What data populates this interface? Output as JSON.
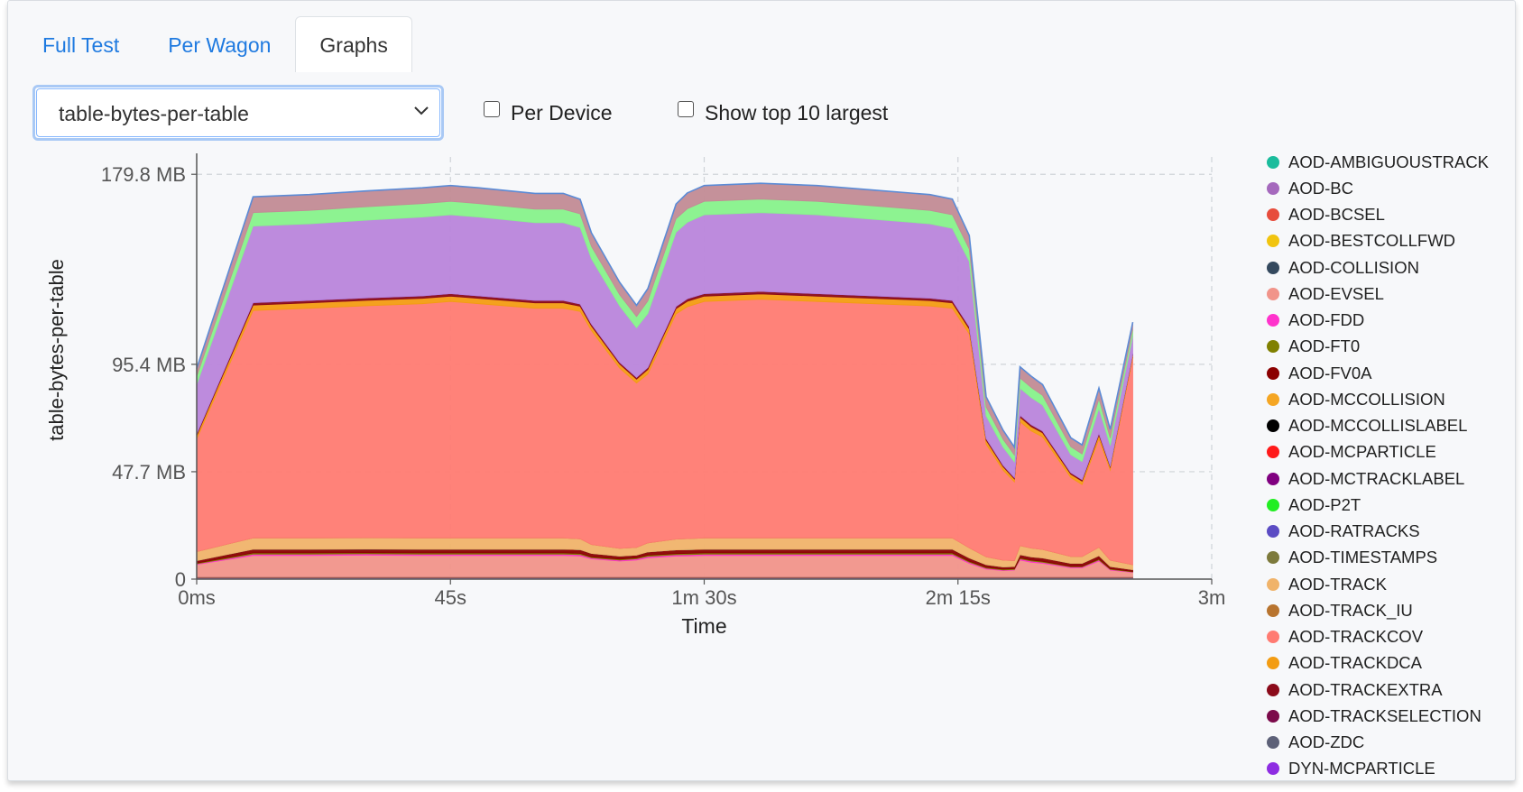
{
  "tabs": [
    {
      "label": "Full Test",
      "active": false
    },
    {
      "label": "Per Wagon",
      "active": false
    },
    {
      "label": "Graphs",
      "active": true
    }
  ],
  "controls": {
    "metric_select_value": "table-bytes-per-table",
    "per_device_label": "Per Device",
    "per_device_checked": false,
    "top10_label": "Show top 10 largest",
    "top10_checked": false
  },
  "chart_data": {
    "type": "area",
    "stacked": true,
    "title": "",
    "xlabel": "Time",
    "ylabel": "table-bytes-per-table",
    "x_unit": "seconds",
    "xlim": [
      0,
      180
    ],
    "ylim": [
      0,
      187.5
    ],
    "x_ticks": [
      {
        "value": 0,
        "label": "0ms"
      },
      {
        "value": 45,
        "label": "45s"
      },
      {
        "value": 90,
        "label": "1m 30s"
      },
      {
        "value": 135,
        "label": "2m 15s"
      },
      {
        "value": 180,
        "label": "3m"
      }
    ],
    "y_ticks": [
      {
        "value": 0,
        "label": "0"
      },
      {
        "value": 47.7,
        "label": "47.7 MB"
      },
      {
        "value": 95.4,
        "label": "95.4 MB"
      },
      {
        "value": 179.8,
        "label": "179.8 MB"
      }
    ],
    "grid": true,
    "legend_position": "right",
    "x": [
      0,
      10,
      20,
      30,
      40,
      45,
      50,
      60,
      65,
      68,
      70,
      75,
      78,
      80,
      85,
      87,
      90,
      100,
      110,
      120,
      130,
      134,
      137,
      140,
      143,
      145,
      146,
      148,
      150,
      155,
      157,
      160,
      162,
      166
    ],
    "series": [
      {
        "name": "AOD-AMBIGUOUSTRACK",
        "color": "#1abc9c",
        "values": [
          0.3,
          0.3,
          0.3,
          0.3,
          0.3,
          0.3,
          0.3,
          0.3,
          0.3,
          0.3,
          0.3,
          0.3,
          0.3,
          0.3,
          0.3,
          0.3,
          0.3,
          0.3,
          0.3,
          0.3,
          0.3,
          0.3,
          0.3,
          0.3,
          0.3,
          0.3,
          0.3,
          0.3,
          0.3,
          0.3,
          0.3,
          0.3,
          0.3,
          0.3
        ]
      },
      {
        "name": "AOD-BC",
        "color": "#a569bd",
        "values": [
          0.3,
          0.3,
          0.3,
          0.3,
          0.3,
          0.3,
          0.3,
          0.3,
          0.3,
          0.3,
          0.3,
          0.3,
          0.3,
          0.3,
          0.3,
          0.3,
          0.3,
          0.3,
          0.3,
          0.3,
          0.3,
          0.3,
          0.3,
          0.3,
          0.3,
          0.3,
          0.3,
          0.3,
          0.3,
          0.3,
          0.3,
          0.3,
          0.3,
          0.3
        ]
      },
      {
        "name": "AOD-BCSEL",
        "color": "#e74c3c",
        "values": [
          0.2,
          0.2,
          0.2,
          0.2,
          0.2,
          0.2,
          0.2,
          0.2,
          0.2,
          0.2,
          0.2,
          0.2,
          0.2,
          0.2,
          0.2,
          0.2,
          0.2,
          0.2,
          0.2,
          0.2,
          0.2,
          0.2,
          0.2,
          0.2,
          0.2,
          0.2,
          0.2,
          0.2,
          0.2,
          0.2,
          0.2,
          0.2,
          0.2,
          0.2
        ]
      },
      {
        "name": "AOD-BESTCOLLFWD",
        "color": "#f1c40f",
        "values": [
          0,
          0,
          0,
          0,
          0,
          0,
          0,
          0,
          0,
          0,
          0,
          0,
          0,
          0,
          0,
          0,
          0,
          0,
          0,
          0,
          0,
          0,
          0,
          0,
          0,
          0,
          0,
          0,
          0,
          0,
          0,
          0,
          0,
          0
        ]
      },
      {
        "name": "AOD-COLLISION",
        "color": "#34495e",
        "values": [
          0.2,
          0.2,
          0.2,
          0.2,
          0.2,
          0.2,
          0.2,
          0.2,
          0.2,
          0.2,
          0.2,
          0.2,
          0.2,
          0.2,
          0.2,
          0.2,
          0.2,
          0.2,
          0.2,
          0.2,
          0.2,
          0.2,
          0.2,
          0.2,
          0.2,
          0.2,
          0.2,
          0.2,
          0.2,
          0.2,
          0.2,
          0.2,
          0.2,
          0.2
        ]
      },
      {
        "name": "AOD-EVSEL",
        "color": "#f1948a",
        "values": [
          5.5,
          9.5,
          9.5,
          9.6,
          9.5,
          9.5,
          9.5,
          9.5,
          9.5,
          9.3,
          8,
          7,
          7.5,
          8.5,
          9.2,
          9.3,
          9.5,
          9.5,
          9.5,
          9.5,
          9.5,
          9.5,
          6,
          3.5,
          2.8,
          3,
          7.5,
          6.5,
          6,
          4,
          4,
          7,
          3,
          2
        ]
      },
      {
        "name": "AOD-FDD",
        "color": "#ff33cc",
        "values": [
          0.3,
          0.6,
          0.6,
          0.6,
          0.6,
          0.6,
          0.6,
          0.6,
          0.6,
          0.6,
          0.5,
          0.5,
          0.5,
          0.6,
          0.6,
          0.6,
          0.6,
          0.6,
          0.6,
          0.6,
          0.6,
          0.6,
          0.5,
          0.4,
          0.3,
          0.3,
          0.5,
          0.5,
          0.5,
          0.4,
          0.4,
          0.5,
          0.3,
          0.2
        ]
      },
      {
        "name": "AOD-FT0",
        "color": "#808000",
        "values": [
          0.3,
          0.5,
          0.5,
          0.5,
          0.5,
          0.5,
          0.5,
          0.5,
          0.5,
          0.5,
          0.4,
          0.4,
          0.4,
          0.5,
          0.5,
          0.5,
          0.5,
          0.5,
          0.5,
          0.5,
          0.5,
          0.5,
          0.4,
          0.3,
          0.3,
          0.3,
          0.4,
          0.4,
          0.4,
          0.3,
          0.3,
          0.4,
          0.3,
          0.2
        ]
      },
      {
        "name": "AOD-FV0A",
        "color": "#8b0000",
        "values": [
          1.1,
          1.7,
          1.7,
          1.7,
          1.7,
          1.7,
          1.7,
          1.7,
          1.7,
          1.7,
          1.5,
          1.3,
          1.3,
          1.5,
          1.7,
          1.7,
          1.7,
          1.7,
          1.7,
          1.7,
          1.7,
          1.7,
          1.5,
          1.2,
          1,
          1,
          1.5,
          1.5,
          1.5,
          1.3,
          1.3,
          1.5,
          1,
          0.8
        ]
      },
      {
        "name": "AOD-MCCOLLISION",
        "color": "#f5a623",
        "values": [
          0,
          0,
          0,
          0,
          0,
          0,
          0,
          0,
          0,
          0,
          0,
          0,
          0,
          0,
          0,
          0,
          0,
          0,
          0,
          0,
          0,
          0,
          0,
          0,
          0,
          0,
          0,
          0,
          0,
          0,
          0,
          0,
          0,
          0
        ]
      },
      {
        "name": "AOD-MCCOLLISLABEL",
        "color": "#000000",
        "values": [
          0,
          0,
          0,
          0,
          0,
          0,
          0,
          0,
          0,
          0,
          0,
          0,
          0,
          0,
          0,
          0,
          0,
          0,
          0,
          0,
          0,
          0,
          0,
          0,
          0,
          0,
          0,
          0,
          0,
          0,
          0,
          0,
          0,
          0
        ]
      },
      {
        "name": "AOD-MCPARTICLE",
        "color": "#ff1a1a",
        "values": [
          0,
          0,
          0,
          0,
          0,
          0,
          0,
          0,
          0,
          0,
          0,
          0,
          0,
          0,
          0,
          0,
          0,
          0,
          0,
          0,
          0,
          0,
          0,
          0,
          0,
          0,
          0,
          0,
          0,
          0,
          0,
          0,
          0,
          0
        ]
      },
      {
        "name": "AOD-MCTRACKLABEL",
        "color": "#800080",
        "values": [
          0,
          0,
          0,
          0,
          0,
          0,
          0,
          0,
          0,
          0,
          0,
          0,
          0,
          0,
          0,
          0,
          0,
          0,
          0,
          0,
          0,
          0,
          0,
          0,
          0,
          0,
          0,
          0,
          0,
          0,
          0,
          0,
          0,
          0
        ]
      },
      {
        "name": "AOD-P2T",
        "color": "#22ee22",
        "values": [
          0,
          0,
          0,
          0,
          0,
          0,
          0,
          0,
          0,
          0,
          0,
          0,
          0,
          0,
          0,
          0,
          0,
          0,
          0,
          0,
          0,
          0,
          0,
          0,
          0,
          0,
          0,
          0,
          0,
          0,
          0,
          0,
          0,
          0
        ]
      },
      {
        "name": "AOD-RATRACKS",
        "color": "#5b4cc4",
        "values": [
          0,
          0,
          0,
          0,
          0,
          0,
          0,
          0,
          0,
          0,
          0,
          0,
          0,
          0,
          0,
          0,
          0,
          0,
          0,
          0,
          0,
          0,
          0,
          0,
          0,
          0,
          0,
          0,
          0,
          0,
          0,
          0,
          0,
          0
        ]
      },
      {
        "name": "AOD-TIMESTAMPS",
        "color": "#7d7a3c",
        "values": [
          0,
          0,
          0,
          0,
          0,
          0,
          0,
          0,
          0,
          0,
          0,
          0,
          0,
          0,
          0,
          0,
          0,
          0,
          0,
          0,
          0,
          0,
          0,
          0,
          0,
          0,
          0,
          0,
          0,
          0,
          0,
          0,
          0,
          0
        ]
      },
      {
        "name": "AOD-TRACK",
        "color": "#f0b36a",
        "values": [
          4,
          5,
          5,
          5,
          5,
          5,
          5,
          5,
          5,
          4.8,
          4,
          3.5,
          3.4,
          4,
          4.8,
          4.9,
          5,
          5,
          5,
          5,
          5,
          5,
          4.5,
          3.5,
          3,
          2.6,
          4,
          3.9,
          3.8,
          3.1,
          3,
          3.8,
          2.8,
          2.2
        ]
      },
      {
        "name": "AOD-TRACK_IU",
        "color": "#b8742f",
        "values": [
          0,
          0,
          0,
          0,
          0,
          0,
          0,
          0,
          0,
          0,
          0,
          0,
          0,
          0,
          0,
          0,
          0,
          0,
          0,
          0,
          0,
          0,
          0,
          0,
          0,
          0,
          0,
          0,
          0,
          0,
          0,
          0,
          0,
          0
        ]
      },
      {
        "name": "AOD-TRACKCOV",
        "color": "#ff7b72",
        "values": [
          50,
          101,
          102,
          103,
          104,
          105,
          104,
          102,
          102,
          101,
          95,
          80,
          73,
          75,
          100,
          103,
          105,
          106,
          105,
          104,
          103,
          102,
          95,
          50,
          40,
          35,
          55,
          52,
          50,
          35,
          32,
          48,
          40,
          92
        ]
      },
      {
        "name": "AOD-TRACKDCA",
        "color": "#f39c12",
        "values": [
          1.5,
          2.4,
          2.4,
          2.4,
          2.4,
          2.4,
          2.4,
          2.4,
          2.4,
          2.3,
          2,
          1.8,
          1.7,
          2,
          2.3,
          2.4,
          2.4,
          2.4,
          2.4,
          2.4,
          2.4,
          2.4,
          2.2,
          1.8,
          1.5,
          1.3,
          2,
          1.9,
          1.8,
          1.5,
          1.5,
          1.8,
          1.4,
          1.2
        ]
      },
      {
        "name": "AOD-TRACKEXTRA",
        "color": "#8b0a1a",
        "values": [
          0.8,
          1.1,
          1.1,
          1.1,
          1.1,
          1.1,
          1.1,
          1.1,
          1.1,
          1,
          0.9,
          0.8,
          0.8,
          0.9,
          1,
          1.1,
          1.1,
          1.1,
          1.1,
          1.1,
          1.1,
          1.1,
          1,
          0.8,
          0.7,
          0.6,
          0.9,
          0.9,
          0.8,
          0.7,
          0.7,
          0.8,
          0.6,
          0.5
        ]
      },
      {
        "name": "AOD-TRACKSELECTION",
        "color": "#7b0a4a",
        "values": [
          0,
          0,
          0,
          0,
          0,
          0,
          0,
          0,
          0,
          0,
          0,
          0,
          0,
          0,
          0,
          0,
          0,
          0,
          0,
          0,
          0,
          0,
          0,
          0,
          0,
          0,
          0,
          0,
          0,
          0,
          0,
          0,
          0,
          0
        ]
      },
      {
        "name": "AOD-ZDC",
        "color": "#5d6178",
        "values": [
          0,
          0,
          0,
          0,
          0,
          0,
          0,
          0,
          0,
          0,
          0,
          0,
          0,
          0,
          0,
          0,
          0,
          0,
          0,
          0,
          0,
          0,
          0,
          0,
          0,
          0,
          0,
          0,
          0,
          0,
          0,
          0,
          0,
          0
        ]
      },
      {
        "name": "DYN-MCPARTICLE",
        "color": "#8e2de2",
        "values": [
          0,
          0,
          0,
          0,
          0,
          0,
          0,
          0,
          0,
          0,
          0,
          0,
          0,
          0,
          0,
          0,
          0,
          0,
          0,
          0,
          0,
          0,
          0,
          0,
          0,
          0,
          0,
          0,
          0,
          0,
          0,
          0,
          0,
          0
        ]
      },
      {
        "name": "",
        "color": "#b985db",
        "values": [
          22,
          34,
          34,
          34.5,
          35,
          35,
          35,
          34.5,
          34.5,
          34,
          29,
          25,
          22,
          24,
          33,
          34,
          35,
          35,
          35,
          34,
          33,
          32,
          29,
          10,
          8,
          7,
          12,
          12,
          11.5,
          8,
          8,
          11,
          9,
          8
        ]
      },
      {
        "name": "",
        "color": "#87f28b",
        "values": [
          3.5,
          6,
          6,
          6,
          6,
          6,
          6,
          6,
          6,
          6,
          5.5,
          5,
          5,
          5.5,
          6,
          6,
          6,
          6,
          6,
          6,
          6,
          6,
          5.5,
          4,
          3.5,
          3,
          4.5,
          4.5,
          4.3,
          3.5,
          3.4,
          4.2,
          3.3,
          2.8
        ]
      },
      {
        "name": "",
        "color": "#c28b95",
        "values": [
          3.5,
          7,
          7,
          7,
          7,
          7,
          7,
          7,
          7,
          6.5,
          6,
          5.5,
          5,
          5.5,
          6.5,
          7,
          7,
          7,
          7,
          7,
          7,
          7,
          6,
          4.5,
          4,
          3.5,
          5,
          5,
          4.8,
          4,
          4,
          4.8,
          3.8,
          3.2
        ]
      }
    ]
  }
}
